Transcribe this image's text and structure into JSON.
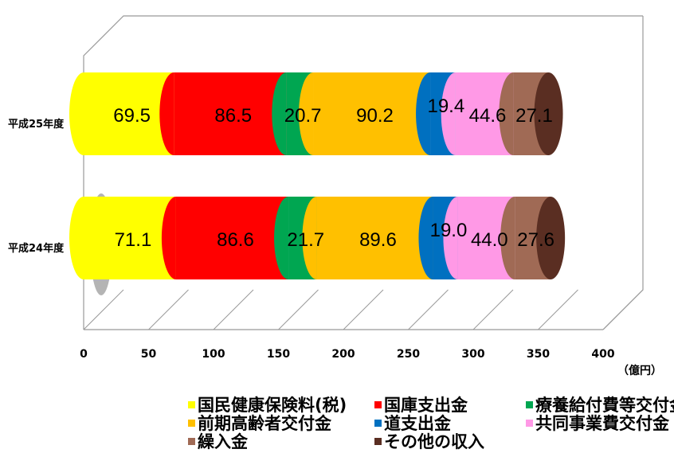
{
  "chart_data": {
    "type": "bar",
    "stacked": true,
    "orientation": "horizontal",
    "title": "",
    "categories": [
      "平成25年度",
      "平成24年度"
    ],
    "x_unit": "（億円）",
    "xlim": [
      0,
      400
    ],
    "x_ticks": [
      0,
      50,
      100,
      150,
      200,
      250,
      300,
      350,
      400
    ],
    "series": [
      {
        "name": "国民健康保険料(税)",
        "values": [
          69.5,
          71.1
        ],
        "color": "#FFFF00"
      },
      {
        "name": "国庫支出金",
        "values": [
          86.5,
          86.6
        ],
        "color": "#FF0000"
      },
      {
        "name": "療養給付費等交付金",
        "values": [
          20.7,
          21.7
        ],
        "color": "#00A651"
      },
      {
        "name": "前期高齢者交付金",
        "values": [
          90.2,
          89.6
        ],
        "color": "#FFC000"
      },
      {
        "name": "道支出金",
        "values": [
          19.4,
          19.0
        ],
        "color": "#0070C0"
      },
      {
        "name": "共同事業費交付金",
        "values": [
          44.6,
          44.0
        ],
        "color": "#FF99E6"
      },
      {
        "name": "繰入金",
        "values": [
          27.1,
          27.6
        ],
        "color": "#A06A55"
      },
      {
        "name": "その他の収入",
        "values": [
          0,
          0
        ],
        "color": "#5A2E22"
      }
    ],
    "legend_position": "bottom",
    "grid": true
  }
}
